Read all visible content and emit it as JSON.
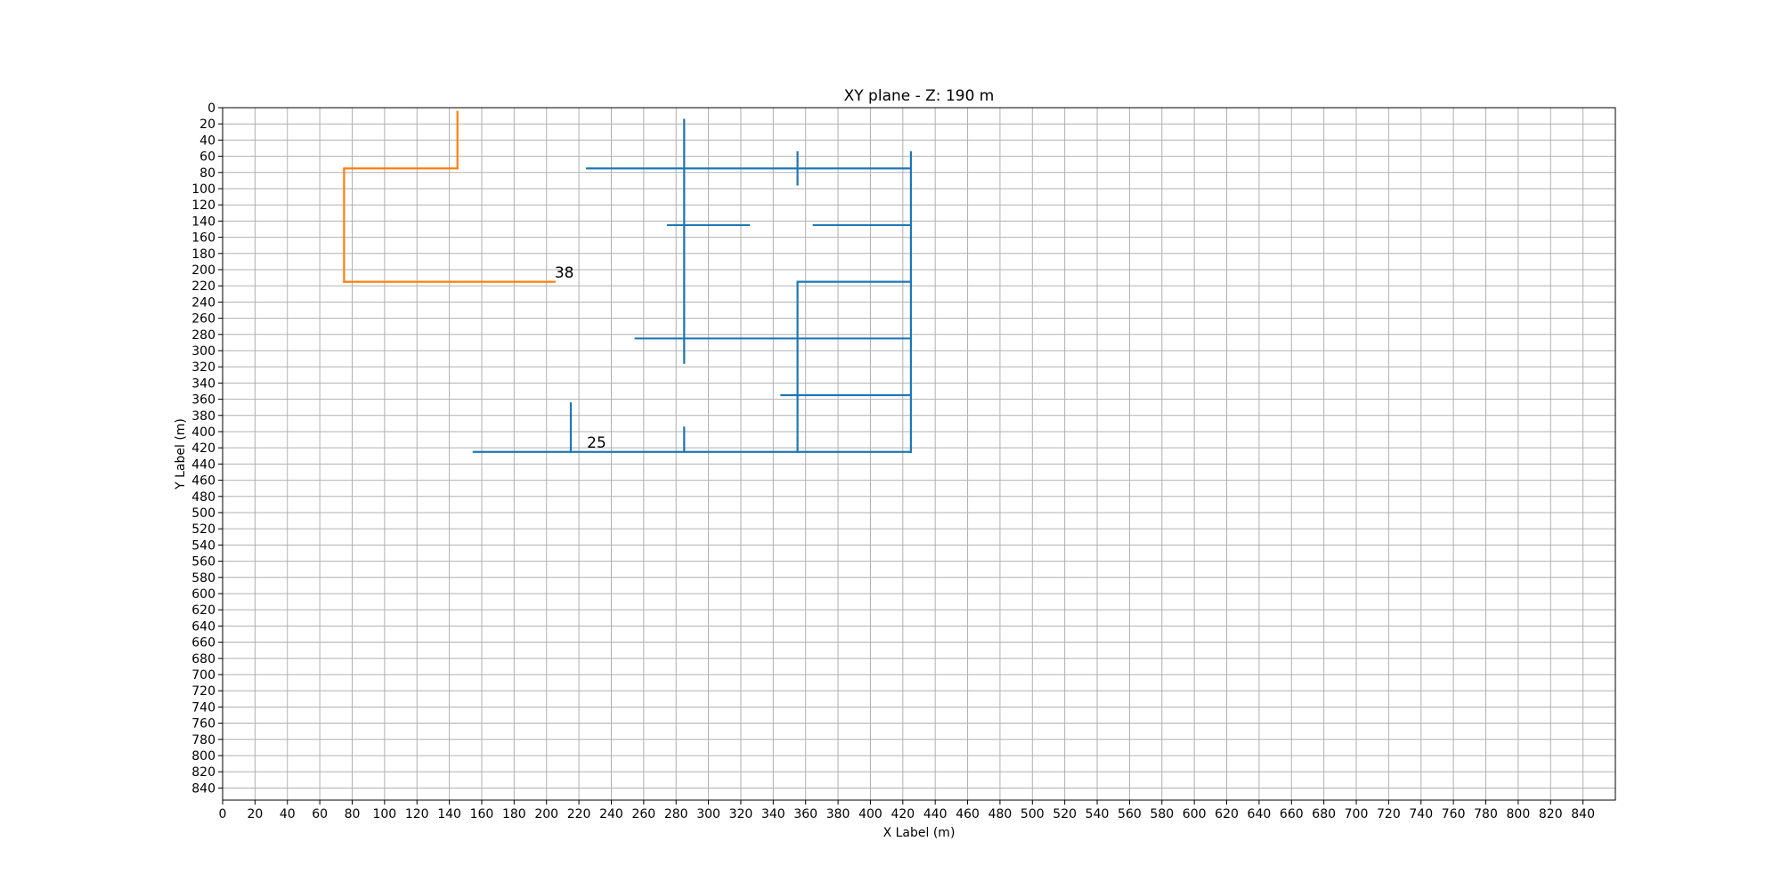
{
  "chart_data": {
    "type": "line",
    "title": "XY plane - Z: 190 m",
    "xlabel": "X Label (m)",
    "ylabel": "Y Label (m)",
    "xlim": [
      0,
      860
    ],
    "ylim": [
      0,
      855
    ],
    "y_inverted": true,
    "grid": true,
    "x_ticks": [
      0,
      20,
      40,
      60,
      80,
      100,
      120,
      140,
      160,
      180,
      200,
      220,
      240,
      260,
      280,
      300,
      320,
      340,
      360,
      380,
      400,
      420,
      440,
      460,
      480,
      500,
      520,
      540,
      560,
      580,
      600,
      620,
      640,
      660,
      680,
      700,
      720,
      740,
      760,
      780,
      800,
      820,
      840
    ],
    "y_ticks": [
      0,
      20,
      40,
      60,
      80,
      100,
      120,
      140,
      160,
      180,
      200,
      220,
      240,
      260,
      280,
      300,
      320,
      340,
      360,
      380,
      400,
      420,
      440,
      460,
      480,
      500,
      520,
      540,
      560,
      580,
      600,
      620,
      640,
      660,
      680,
      700,
      720,
      740,
      760,
      780,
      800,
      820,
      840
    ],
    "series": [
      {
        "color": "#1f77b4",
        "label_text": "25",
        "label_at": [
          225,
          420
        ],
        "segments": [
          [
            [
              225,
              75
            ],
            [
              425,
              75
            ]
          ],
          [
            [
              285,
              15
            ],
            [
              285,
              315
            ]
          ],
          [
            [
              355,
              55
            ],
            [
              355,
              95
            ]
          ],
          [
            [
              275,
              145
            ],
            [
              325,
              145
            ]
          ],
          [
            [
              365,
              145
            ],
            [
              425,
              145
            ]
          ],
          [
            [
              425,
              55
            ],
            [
              425,
              425
            ]
          ],
          [
            [
              355,
              215
            ],
            [
              425,
              215
            ]
          ],
          [
            [
              355,
              215
            ],
            [
              355,
              425
            ]
          ],
          [
            [
              255,
              285
            ],
            [
              425,
              285
            ]
          ],
          [
            [
              345,
              355
            ],
            [
              425,
              355
            ]
          ],
          [
            [
              155,
              425
            ],
            [
              425,
              425
            ]
          ],
          [
            [
              215,
              365
            ],
            [
              215,
              425
            ]
          ],
          [
            [
              285,
              395
            ],
            [
              285,
              425
            ]
          ]
        ]
      },
      {
        "color": "#ff7f0e",
        "label_text": "38",
        "label_at": [
          205,
          210
        ],
        "segments": [
          [
            [
              145,
              5
            ],
            [
              145,
              75
            ]
          ],
          [
            [
              145,
              75
            ],
            [
              75,
              75
            ]
          ],
          [
            [
              75,
              75
            ],
            [
              75,
              215
            ]
          ],
          [
            [
              75,
              215
            ],
            [
              205,
              215
            ]
          ]
        ]
      }
    ]
  }
}
